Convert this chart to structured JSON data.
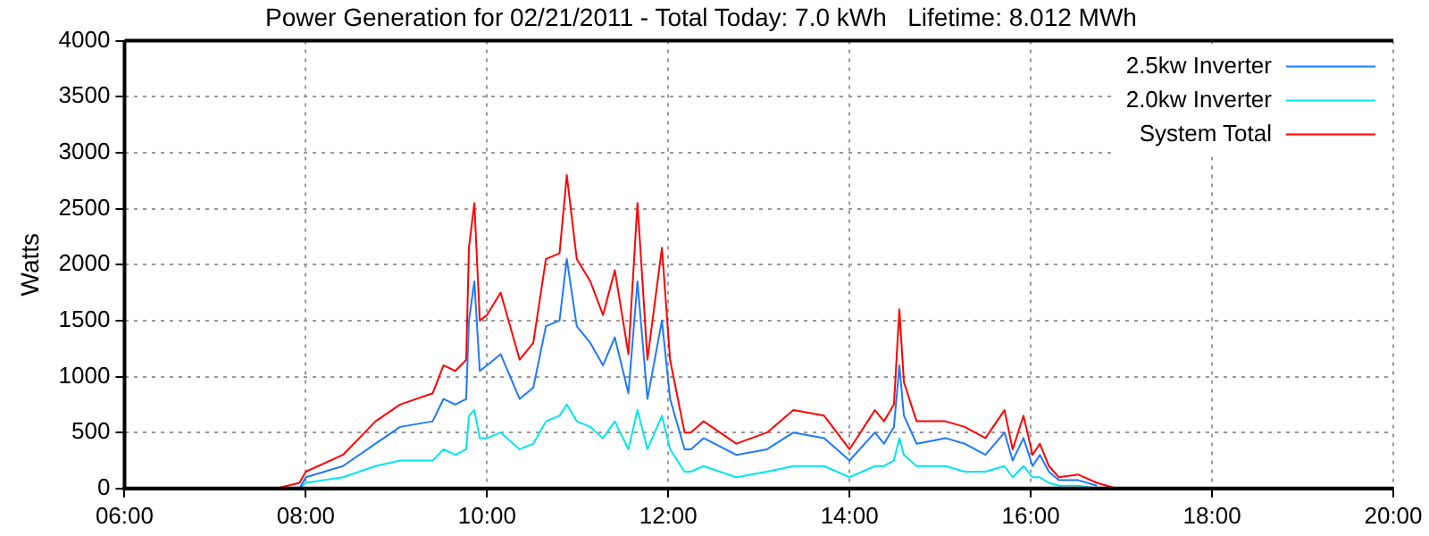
{
  "chart_data": {
    "type": "line",
    "title": "Power Generation for 02/21/2011 - Total Today: 7.0 kWh   Lifetime: 8.012 MWh",
    "ylabel": "Watts",
    "x": [
      7.5,
      7.68,
      7.93,
      8.0,
      8.41,
      8.77,
      9.04,
      9.4,
      9.52,
      9.65,
      9.77,
      9.8,
      9.86,
      9.92,
      10.0,
      10.15,
      10.36,
      10.51,
      10.65,
      10.8,
      10.88,
      10.99,
      11.14,
      11.28,
      11.41,
      11.56,
      11.66,
      11.77,
      11.93,
      12.02,
      12.18,
      12.25,
      12.39,
      12.75,
      13.09,
      13.38,
      13.72,
      14.0,
      14.28,
      14.38,
      14.49,
      14.55,
      14.6,
      14.74,
      15.06,
      15.27,
      15.5,
      15.71,
      15.8,
      15.92,
      16.02,
      16.1,
      16.2,
      16.31,
      16.52,
      16.73,
      16.94
    ],
    "series": [
      {
        "name": "2.5kw Inverter",
        "color": "#1e78ff",
        "values": [
          null,
          null,
          0,
          100,
          200,
          400,
          550,
          600,
          800,
          750,
          800,
          1500,
          1850,
          1050,
          1100,
          1200,
          800,
          900,
          1450,
          1500,
          2050,
          1450,
          1300,
          1100,
          1350,
          850,
          1850,
          800,
          1500,
          800,
          350,
          350,
          450,
          300,
          350,
          500,
          450,
          250,
          500,
          400,
          550,
          1100,
          650,
          400,
          450,
          400,
          300,
          500,
          250,
          450,
          200,
          300,
          150,
          75,
          75,
          25,
          null
        ]
      },
      {
        "name": "2.0kw Inverter",
        "color": "#00e5ee",
        "values": [
          null,
          null,
          0,
          50,
          100,
          200,
          250,
          250,
          350,
          300,
          350,
          650,
          700,
          450,
          450,
          500,
          350,
          400,
          600,
          650,
          750,
          600,
          550,
          450,
          600,
          350,
          700,
          350,
          650,
          350,
          150,
          150,
          200,
          100,
          150,
          200,
          200,
          100,
          200,
          200,
          250,
          450,
          300,
          200,
          200,
          150,
          150,
          200,
          100,
          200,
          100,
          100,
          50,
          25,
          25,
          0,
          null
        ]
      },
      {
        "name": "System Total",
        "color": "#ff0000",
        "values": [
          0,
          0,
          50,
          150,
          300,
          600,
          750,
          850,
          1100,
          1050,
          1150,
          2150,
          2550,
          1500,
          1550,
          1750,
          1150,
          1300,
          2050,
          2100,
          2800,
          2050,
          1850,
          1550,
          1950,
          1200,
          2550,
          1150,
          2150,
          1150,
          500,
          500,
          600,
          400,
          500,
          700,
          650,
          350,
          700,
          600,
          750,
          1600,
          950,
          600,
          600,
          550,
          450,
          700,
          350,
          650,
          300,
          400,
          200,
          100,
          125,
          50,
          0
        ]
      }
    ],
    "xlim": [
      6,
      20
    ],
    "xticks": [
      {
        "value": 6,
        "label": "06:00"
      },
      {
        "value": 8,
        "label": "08:00"
      },
      {
        "value": 10,
        "label": "10:00"
      },
      {
        "value": 12,
        "label": "12:00"
      },
      {
        "value": 14,
        "label": "14:00"
      },
      {
        "value": 16,
        "label": "16:00"
      },
      {
        "value": 18,
        "label": "18:00"
      },
      {
        "value": 20,
        "label": "20:00"
      }
    ],
    "ylim": [
      0,
      4000
    ],
    "yticks": [
      0,
      500,
      1000,
      1500,
      2000,
      2500,
      3000,
      3500,
      4000
    ],
    "grid": true,
    "legend": "top right",
    "marker": "none",
    "line_style": "solid"
  }
}
